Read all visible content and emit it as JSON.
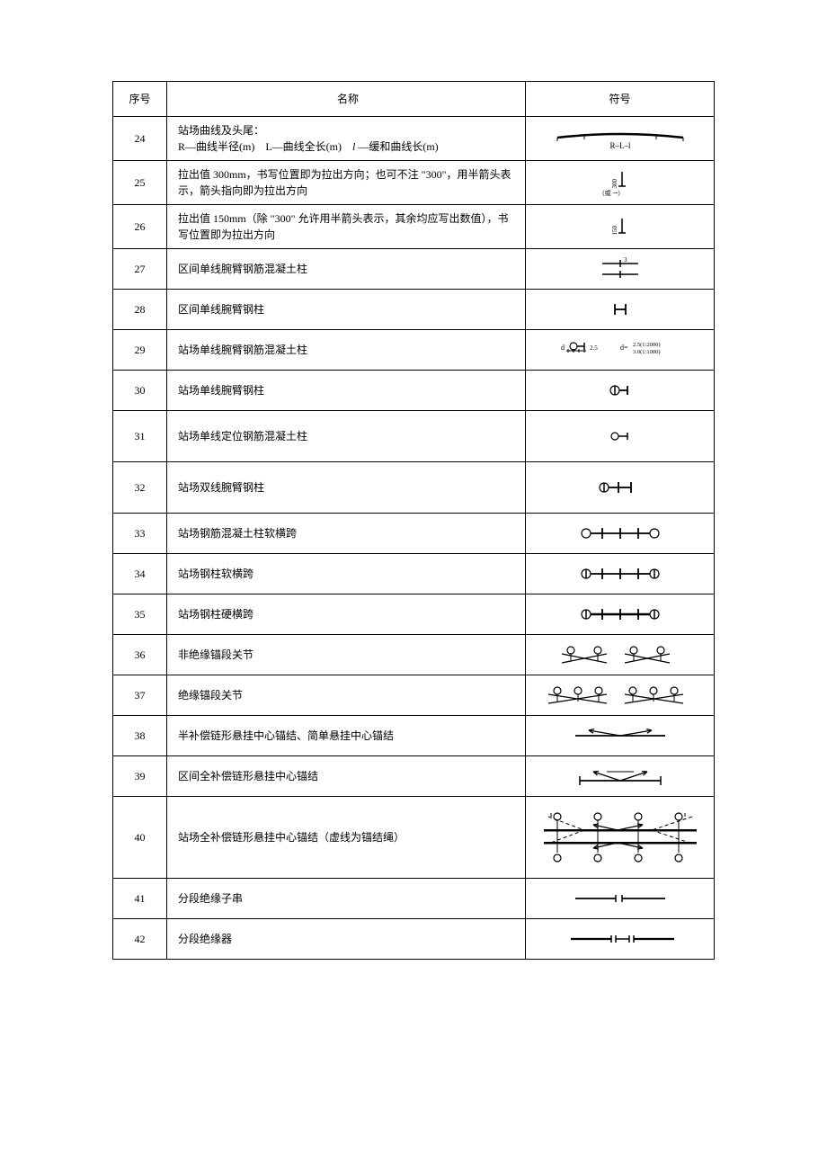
{
  "table": {
    "headers": {
      "seq": "序号",
      "name": "名称",
      "symbol": "符号"
    },
    "rows": [
      {
        "seq": "24",
        "name": "站场曲线及头尾：\nR—曲线半径(m)　L—曲线全长(m)　l —缓和曲线长(m)",
        "sym_label": "R–L–l",
        "sym_type": "curve"
      },
      {
        "seq": "25",
        "name": "拉出值 300mm，书写位置即为拉出方向；也可不注 \"300\"，用半箭头表示，箭头指向即为拉出方向",
        "sym_label": "300",
        "sym_note": "（或 ⇀）",
        "sym_type": "pullout300"
      },
      {
        "seq": "26",
        "name": "拉出值 150mm（除 \"300\" 允许用半箭头表示，其余均应写出数值），书写位置即为拉出方向",
        "sym_label": "150",
        "sym_type": "pullout150"
      },
      {
        "seq": "27",
        "name": "区间单线腕臂钢筋混凝土柱",
        "sym_label": "3",
        "sym_type": "post27"
      },
      {
        "seq": "28",
        "name": "区间单线腕臂钢柱",
        "sym_type": "post28"
      },
      {
        "seq": "29",
        "name": "站场单线腕臂钢筋混凝土柱",
        "sym_label_a": "d",
        "sym_label_b": "2.5",
        "sym_label_c": "d=",
        "sym_label_d": "2.5(1:2000)",
        "sym_label_e": "3.0(1:1000)",
        "sym_type": "post29"
      },
      {
        "seq": "30",
        "name": "站场单线腕臂钢柱",
        "sym_type": "post30"
      },
      {
        "seq": "31",
        "name": "站场单线定位钢筋混凝土柱",
        "sym_type": "post31"
      },
      {
        "seq": "32",
        "name": "站场双线腕臂钢柱",
        "sym_type": "post32"
      },
      {
        "seq": "33",
        "name": "站场钢筋混凝土柱软横跨",
        "sym_type": "post33"
      },
      {
        "seq": "34",
        "name": "站场钢柱软横跨",
        "sym_type": "post34"
      },
      {
        "seq": "35",
        "name": "站场钢柱硬横跨",
        "sym_type": "post35"
      },
      {
        "seq": "36",
        "name": "非绝缘锚段关节",
        "sym_type": "joint36"
      },
      {
        "seq": "37",
        "name": "绝缘锚段关节",
        "sym_type": "joint37"
      },
      {
        "seq": "38",
        "name": "半补偿链形悬挂中心锚结、简单悬挂中心锚结",
        "sym_type": "anchor38"
      },
      {
        "seq": "39",
        "name": "区间全补偿链形悬挂中心锚结",
        "sym_type": "anchor39"
      },
      {
        "seq": "40",
        "name": "站场全补偿链形悬挂中心锚结（虚线为锚结绳）",
        "sym_type": "anchor40"
      },
      {
        "seq": "41",
        "name": "分段绝缘子串",
        "sym_type": "insul41"
      },
      {
        "seq": "42",
        "name": "分段绝缘器",
        "sym_type": "insul42"
      }
    ]
  },
  "colors": {
    "line": "#000000",
    "bg": "#ffffff"
  }
}
